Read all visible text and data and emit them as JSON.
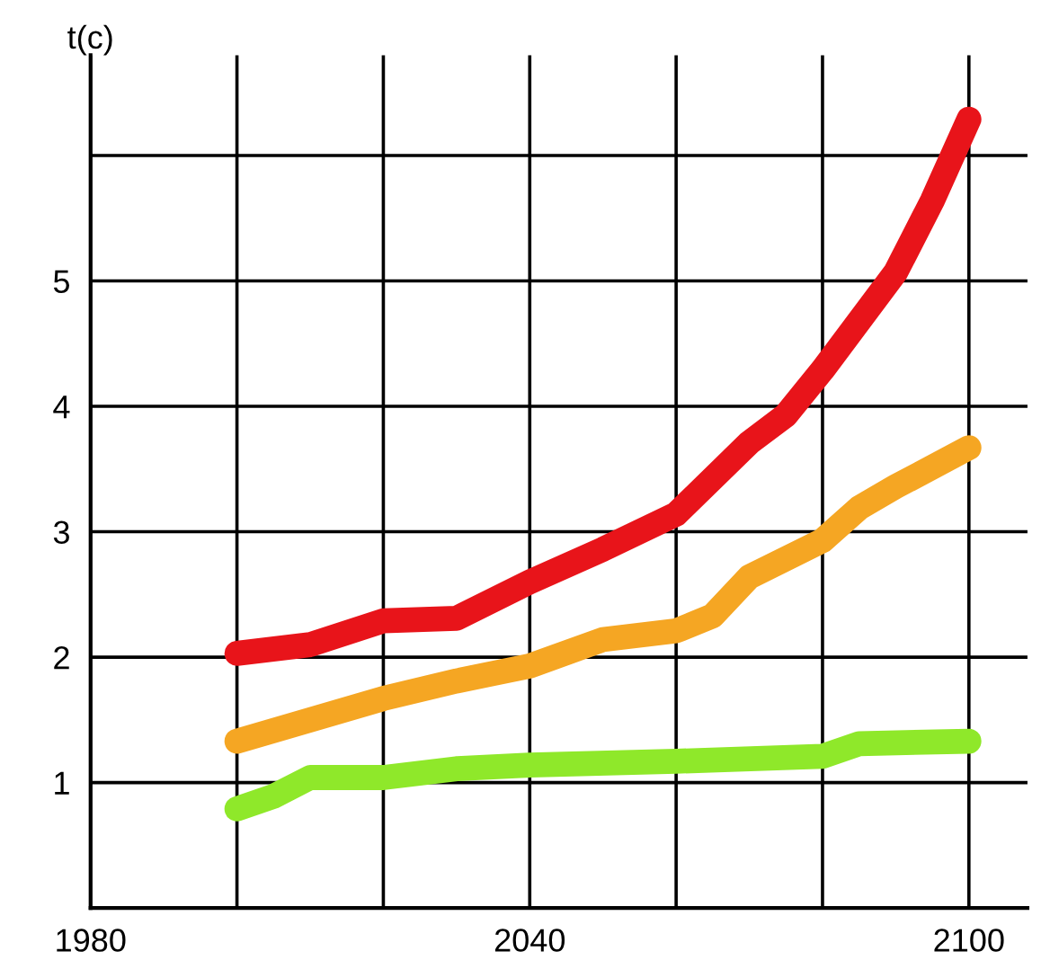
{
  "chart_data": {
    "type": "line",
    "ylabel": "t(c)",
    "xlim": [
      1980,
      2108
    ],
    "xticks": [
      1980,
      {
        "value": 2000,
        "label": null
      },
      {
        "value": 2020,
        "label": null
      },
      2040,
      {
        "value": 2060,
        "label": null
      },
      {
        "value": 2080,
        "label": null
      },
      2100
    ],
    "ylim": [
      0,
      6.8
    ],
    "yticks": [
      1,
      2,
      3,
      4,
      5,
      {
        "value": 6,
        "label": null
      }
    ],
    "grid": true,
    "line_style": "solid",
    "series": [
      {
        "color": "#e8141a",
        "x": [
          2000,
          2010,
          2020,
          2030,
          2040,
          2050,
          2060,
          2070,
          2075,
          2080,
          2090,
          2095,
          2100
        ],
        "values": [
          2.03,
          2.1,
          2.29,
          2.31,
          2.6,
          2.86,
          3.14,
          3.71,
          3.93,
          4.29,
          5.07,
          5.64,
          6.29
        ]
      },
      {
        "color": "#f5a623",
        "x": [
          2000,
          2010,
          2020,
          2030,
          2040,
          2050,
          2060,
          2065,
          2070,
          2080,
          2085,
          2090,
          2100
        ],
        "values": [
          1.33,
          1.5,
          1.67,
          1.81,
          1.93,
          2.14,
          2.21,
          2.33,
          2.64,
          2.93,
          3.19,
          3.36,
          3.67
        ]
      },
      {
        "color": "#8fe82a",
        "x": [
          2000,
          2005,
          2010,
          2020,
          2030,
          2040,
          2060,
          2080,
          2085,
          2100
        ],
        "values": [
          0.79,
          0.89,
          1.04,
          1.04,
          1.11,
          1.14,
          1.17,
          1.21,
          1.31,
          1.33
        ]
      }
    ]
  }
}
